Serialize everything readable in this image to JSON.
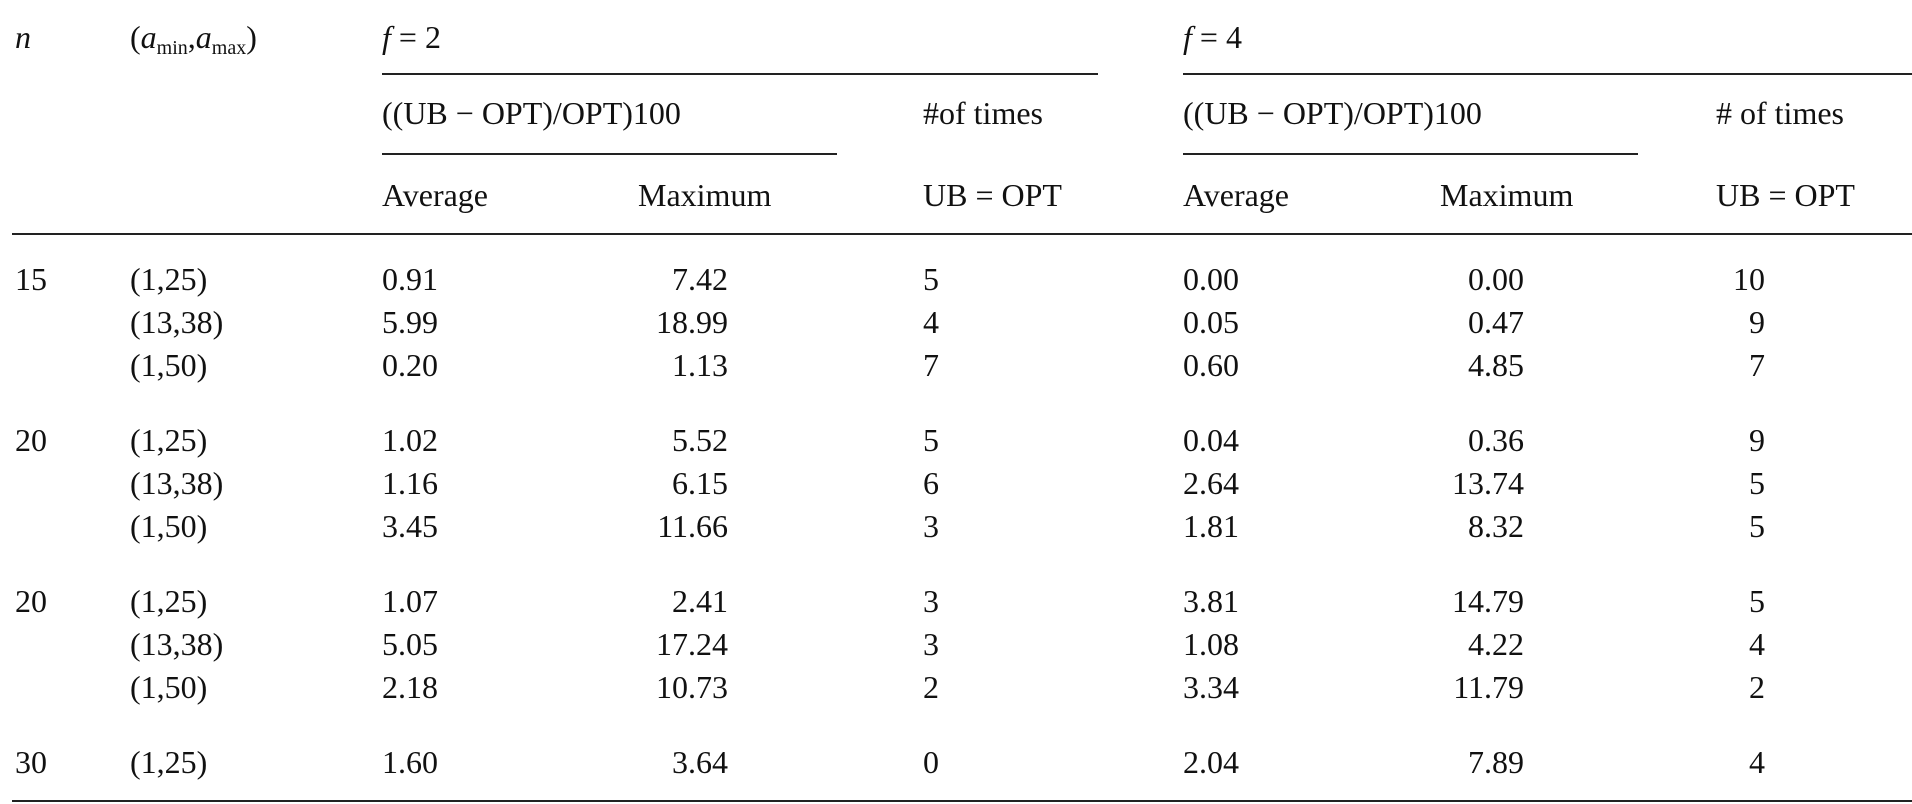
{
  "table": {
    "header": {
      "n": "n",
      "range": [
        "(",
        "a",
        "min",
        ",",
        "a",
        "max",
        ")"
      ],
      "groups": [
        {
          "f": {
            "var": "f",
            "rest": "= 2"
          },
          "ratio": "((UB − OPT)/OPT)100",
          "average": "Average",
          "maximum": "Maximum",
          "times": "#of times",
          "equal": "UB = OPT"
        },
        {
          "f": {
            "var": "f",
            "rest": "= 4"
          },
          "ratio": "((UB − OPT)/OPT)100",
          "average": "Average",
          "maximum": "Maximum",
          "times": "# of times",
          "equal": "UB = OPT"
        }
      ]
    },
    "groups": [
      {
        "n": "15",
        "rows": [
          [
            "(1,25)",
            "0.91",
            "7.42",
            "5",
            "0.00",
            "0.00",
            "10"
          ],
          [
            "(13,38)",
            "5.99",
            "18.99",
            "4",
            "0.05",
            "0.47",
            "9"
          ],
          [
            "(1,50)",
            "0.20",
            "1.13",
            "7",
            "0.60",
            "4.85",
            "7"
          ]
        ]
      },
      {
        "n": "20",
        "rows": [
          [
            "(1,25)",
            "1.02",
            "5.52",
            "5",
            "0.04",
            "0.36",
            "9"
          ],
          [
            "(13,38)",
            "1.16",
            "6.15",
            "6",
            "2.64",
            "13.74",
            "5"
          ],
          [
            "(1,50)",
            "3.45",
            "11.66",
            "3",
            "1.81",
            "8.32",
            "5"
          ]
        ]
      },
      {
        "n": "20",
        "rows": [
          [
            "(1,25)",
            "1.07",
            "2.41",
            "3",
            "3.81",
            "14.79",
            "5"
          ],
          [
            "(13,38)",
            "5.05",
            "17.24",
            "3",
            "1.08",
            "4.22",
            "4"
          ],
          [
            "(1,50)",
            "2.18",
            "10.73",
            "2",
            "3.34",
            "11.79",
            "2"
          ]
        ]
      },
      {
        "n": "30",
        "rows": [
          [
            "(1,25)",
            "1.60",
            "3.64",
            "0",
            "2.04",
            "7.89",
            "4"
          ]
        ]
      }
    ]
  }
}
